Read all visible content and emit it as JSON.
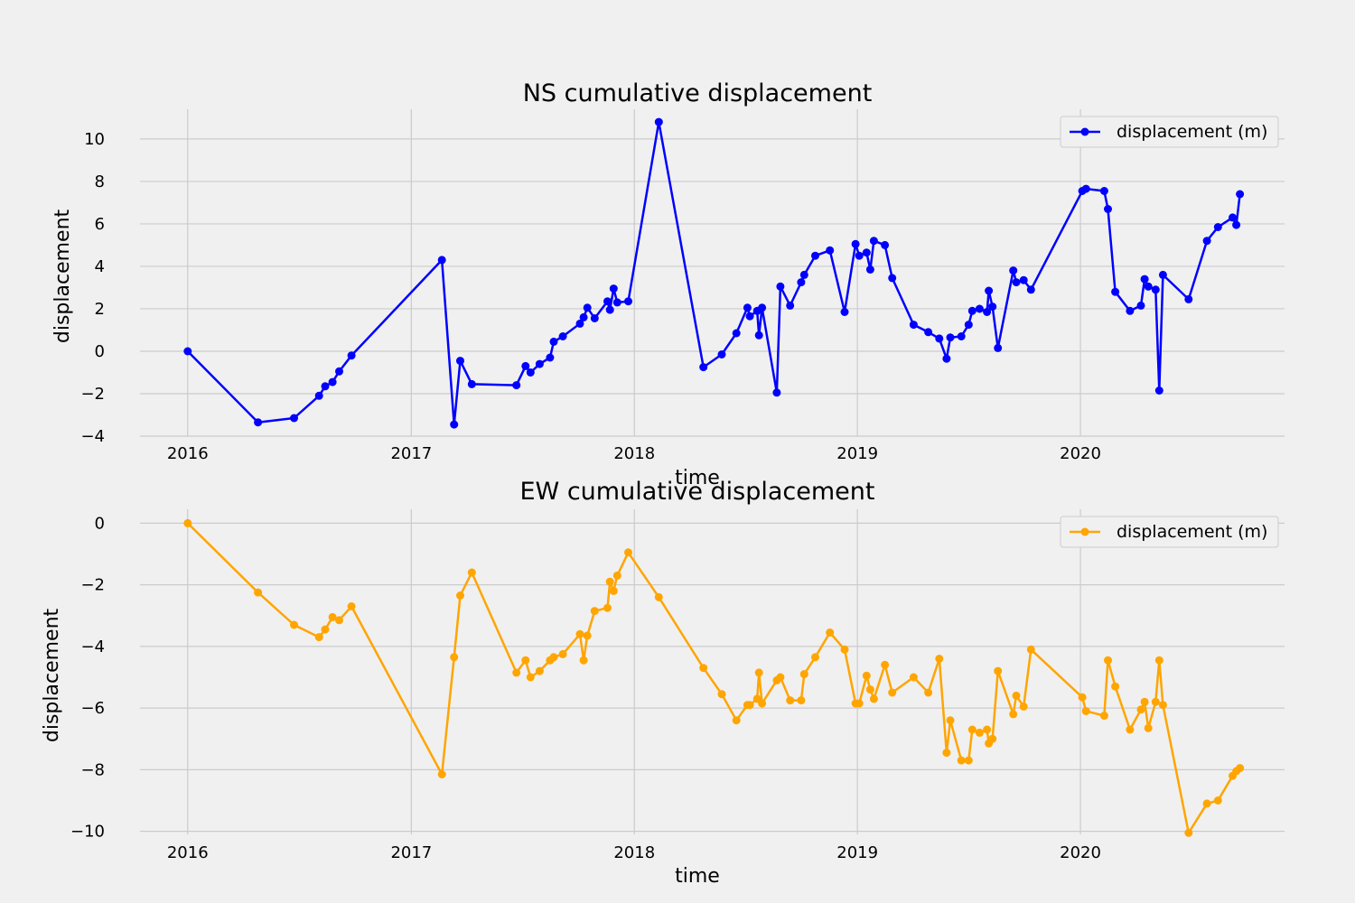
{
  "chart_data": [
    {
      "type": "line",
      "title": "NS cumulative displacement",
      "xlabel": "time",
      "ylabel": "displacement",
      "xlim": [
        "2015-10-15",
        "2020-11-30"
      ],
      "ylim": [
        -4,
        11.4
      ],
      "x_ticks": [
        "2016",
        "2017",
        "2018",
        "2019",
        "2020"
      ],
      "y_ticks": [
        -4,
        -2,
        0,
        2,
        4,
        6,
        8,
        10
      ],
      "grid": true,
      "legend_position": "top-right",
      "color": "#0000ff",
      "series": [
        {
          "name": "displacement (m)",
          "points": [
            [
              "2016-01-01",
              0.0
            ],
            [
              "2016-04-25",
              -3.35
            ],
            [
              "2016-06-23",
              -3.15
            ],
            [
              "2016-08-03",
              -2.1
            ],
            [
              "2016-08-13",
              -1.65
            ],
            [
              "2016-08-25",
              -1.45
            ],
            [
              "2016-09-05",
              -0.95
            ],
            [
              "2016-09-25",
              -0.2
            ],
            [
              "2017-02-20",
              4.3
            ],
            [
              "2017-03-12",
              -3.45
            ],
            [
              "2017-03-22",
              -0.45
            ],
            [
              "2017-04-10",
              -1.55
            ],
            [
              "2017-06-22",
              -1.6
            ],
            [
              "2017-07-07",
              -0.7
            ],
            [
              "2017-07-15",
              -1.0
            ],
            [
              "2017-07-30",
              -0.6
            ],
            [
              "2017-08-16",
              -0.3
            ],
            [
              "2017-08-22",
              0.45
            ],
            [
              "2017-09-06",
              0.7
            ],
            [
              "2017-10-04",
              1.3
            ],
            [
              "2017-10-10",
              1.6
            ],
            [
              "2017-10-16",
              2.05
            ],
            [
              "2017-10-28",
              1.55
            ],
            [
              "2017-11-18",
              2.35
            ],
            [
              "2017-11-22",
              1.95
            ],
            [
              "2017-11-28",
              2.95
            ],
            [
              "2017-12-04",
              2.3
            ],
            [
              "2017-12-22",
              2.35
            ],
            [
              "2018-02-10",
              10.8
            ],
            [
              "2018-04-24",
              -0.75
            ],
            [
              "2018-05-24",
              -0.15
            ],
            [
              "2018-06-17",
              0.85
            ],
            [
              "2018-07-05",
              2.05
            ],
            [
              "2018-07-09",
              1.65
            ],
            [
              "2018-07-21",
              1.9
            ],
            [
              "2018-07-24",
              0.75
            ],
            [
              "2018-07-29",
              2.05
            ],
            [
              "2018-08-22",
              -1.95
            ],
            [
              "2018-08-28",
              3.05
            ],
            [
              "2018-09-13",
              2.15
            ],
            [
              "2018-10-01",
              3.25
            ],
            [
              "2018-10-06",
              3.6
            ],
            [
              "2018-10-24",
              4.5
            ],
            [
              "2018-11-17",
              4.75
            ],
            [
              "2018-12-11",
              1.85
            ],
            [
              "2018-12-29",
              5.05
            ],
            [
              "2019-01-04",
              4.5
            ],
            [
              "2019-01-16",
              4.65
            ],
            [
              "2019-01-22",
              3.85
            ],
            [
              "2019-01-28",
              5.2
            ],
            [
              "2019-02-15",
              5.0
            ],
            [
              "2019-02-27",
              3.45
            ],
            [
              "2019-04-03",
              1.25
            ],
            [
              "2019-04-27",
              0.9
            ],
            [
              "2019-05-15",
              0.6
            ],
            [
              "2019-05-27",
              -0.35
            ],
            [
              "2019-06-02",
              0.65
            ],
            [
              "2019-06-20",
              0.7
            ],
            [
              "2019-07-02",
              1.25
            ],
            [
              "2019-07-08",
              1.9
            ],
            [
              "2019-07-20",
              2.0
            ],
            [
              "2019-08-01",
              1.85
            ],
            [
              "2019-08-04",
              2.85
            ],
            [
              "2019-08-10",
              2.1
            ],
            [
              "2019-08-19",
              0.15
            ],
            [
              "2019-09-13",
              3.8
            ],
            [
              "2019-09-18",
              3.25
            ],
            [
              "2019-09-30",
              3.35
            ],
            [
              "2019-10-12",
              2.9
            ],
            [
              "2020-01-04",
              7.55
            ],
            [
              "2020-01-10",
              7.65
            ],
            [
              "2020-02-09",
              7.55
            ],
            [
              "2020-02-15",
              6.7
            ],
            [
              "2020-02-27",
              2.8
            ],
            [
              "2020-03-22",
              1.9
            ],
            [
              "2020-04-09",
              2.15
            ],
            [
              "2020-04-15",
              3.4
            ],
            [
              "2020-04-21",
              3.05
            ],
            [
              "2020-05-03",
              2.9
            ],
            [
              "2020-05-09",
              -1.85
            ],
            [
              "2020-05-15",
              3.6
            ],
            [
              "2020-06-26",
              2.45
            ],
            [
              "2020-07-26",
              5.2
            ],
            [
              "2020-08-13",
              5.85
            ],
            [
              "2020-09-06",
              6.3
            ],
            [
              "2020-09-12",
              5.95
            ],
            [
              "2020-09-18",
              7.4
            ]
          ]
        }
      ]
    },
    {
      "type": "line",
      "title": "EW cumulative displacement",
      "xlabel": "time",
      "ylabel": "displacement",
      "xlim": [
        "2015-10-15",
        "2020-11-30"
      ],
      "ylim": [
        -10.1,
        0.45
      ],
      "x_ticks": [
        "2016",
        "2017",
        "2018",
        "2019",
        "2020"
      ],
      "y_ticks": [
        -10,
        -8,
        -6,
        -4,
        -2,
        0
      ],
      "grid": true,
      "legend_position": "top-right",
      "color": "#ffa500",
      "series": [
        {
          "name": "displacement (m)",
          "points": [
            [
              "2016-01-01",
              0.0
            ],
            [
              "2016-04-25",
              -2.25
            ],
            [
              "2016-06-23",
              -3.3
            ],
            [
              "2016-08-03",
              -3.7
            ],
            [
              "2016-08-13",
              -3.45
            ],
            [
              "2016-08-25",
              -3.05
            ],
            [
              "2016-09-05",
              -3.15
            ],
            [
              "2016-09-25",
              -2.7
            ],
            [
              "2017-02-20",
              -8.15
            ],
            [
              "2017-03-12",
              -4.35
            ],
            [
              "2017-03-22",
              -2.35
            ],
            [
              "2017-04-10",
              -1.6
            ],
            [
              "2017-06-22",
              -4.85
            ],
            [
              "2017-07-07",
              -4.45
            ],
            [
              "2017-07-15",
              -5.0
            ],
            [
              "2017-07-30",
              -4.8
            ],
            [
              "2017-08-16",
              -4.45
            ],
            [
              "2017-08-22",
              -4.35
            ],
            [
              "2017-09-06",
              -4.25
            ],
            [
              "2017-10-04",
              -3.6
            ],
            [
              "2017-10-10",
              -4.45
            ],
            [
              "2017-10-16",
              -3.65
            ],
            [
              "2017-10-28",
              -2.85
            ],
            [
              "2017-11-18",
              -2.75
            ],
            [
              "2017-11-22",
              -1.9
            ],
            [
              "2017-11-28",
              -2.2
            ],
            [
              "2017-12-04",
              -1.7
            ],
            [
              "2017-12-22",
              -0.95
            ],
            [
              "2018-02-10",
              -2.4
            ],
            [
              "2018-04-24",
              -4.7
            ],
            [
              "2018-05-24",
              -5.55
            ],
            [
              "2018-06-17",
              -6.4
            ],
            [
              "2018-07-05",
              -5.9
            ],
            [
              "2018-07-09",
              -5.9
            ],
            [
              "2018-07-21",
              -5.7
            ],
            [
              "2018-07-24",
              -4.85
            ],
            [
              "2018-07-29",
              -5.85
            ],
            [
              "2018-08-22",
              -5.1
            ],
            [
              "2018-08-28",
              -5.0
            ],
            [
              "2018-09-13",
              -5.75
            ],
            [
              "2018-10-01",
              -5.75
            ],
            [
              "2018-10-06",
              -4.9
            ],
            [
              "2018-10-24",
              -4.35
            ],
            [
              "2018-11-17",
              -3.55
            ],
            [
              "2018-12-11",
              -4.1
            ],
            [
              "2018-12-29",
              -5.85
            ],
            [
              "2019-01-04",
              -5.85
            ],
            [
              "2019-01-16",
              -4.95
            ],
            [
              "2019-01-22",
              -5.4
            ],
            [
              "2019-01-28",
              -5.7
            ],
            [
              "2019-02-15",
              -4.6
            ],
            [
              "2019-02-27",
              -5.5
            ],
            [
              "2019-04-03",
              -5.0
            ],
            [
              "2019-04-27",
              -5.5
            ],
            [
              "2019-05-15",
              -4.4
            ],
            [
              "2019-05-27",
              -7.45
            ],
            [
              "2019-06-02",
              -6.4
            ],
            [
              "2019-06-20",
              -7.7
            ],
            [
              "2019-07-02",
              -7.7
            ],
            [
              "2019-07-08",
              -6.7
            ],
            [
              "2019-07-20",
              -6.8
            ],
            [
              "2019-08-01",
              -6.7
            ],
            [
              "2019-08-04",
              -7.15
            ],
            [
              "2019-08-10",
              -7.0
            ],
            [
              "2019-08-19",
              -4.8
            ],
            [
              "2019-09-13",
              -6.2
            ],
            [
              "2019-09-18",
              -5.6
            ],
            [
              "2019-09-30",
              -5.95
            ],
            [
              "2019-10-12",
              -4.1
            ],
            [
              "2020-01-04",
              -5.65
            ],
            [
              "2020-01-10",
              -6.1
            ],
            [
              "2020-02-09",
              -6.25
            ],
            [
              "2020-02-15",
              -4.45
            ],
            [
              "2020-02-27",
              -5.3
            ],
            [
              "2020-03-22",
              -6.7
            ],
            [
              "2020-04-09",
              -6.05
            ],
            [
              "2020-04-15",
              -5.8
            ],
            [
              "2020-04-21",
              -6.65
            ],
            [
              "2020-05-03",
              -5.8
            ],
            [
              "2020-05-09",
              -4.45
            ],
            [
              "2020-05-15",
              -5.9
            ],
            [
              "2020-06-26",
              -10.05
            ],
            [
              "2020-07-26",
              -9.1
            ],
            [
              "2020-08-13",
              -9.0
            ],
            [
              "2020-09-06",
              -8.2
            ],
            [
              "2020-09-12",
              -8.05
            ],
            [
              "2020-09-18",
              -7.95
            ]
          ]
        }
      ]
    }
  ],
  "theme": {
    "background": "#f0f0f0",
    "grid": "#cbcbcb"
  }
}
